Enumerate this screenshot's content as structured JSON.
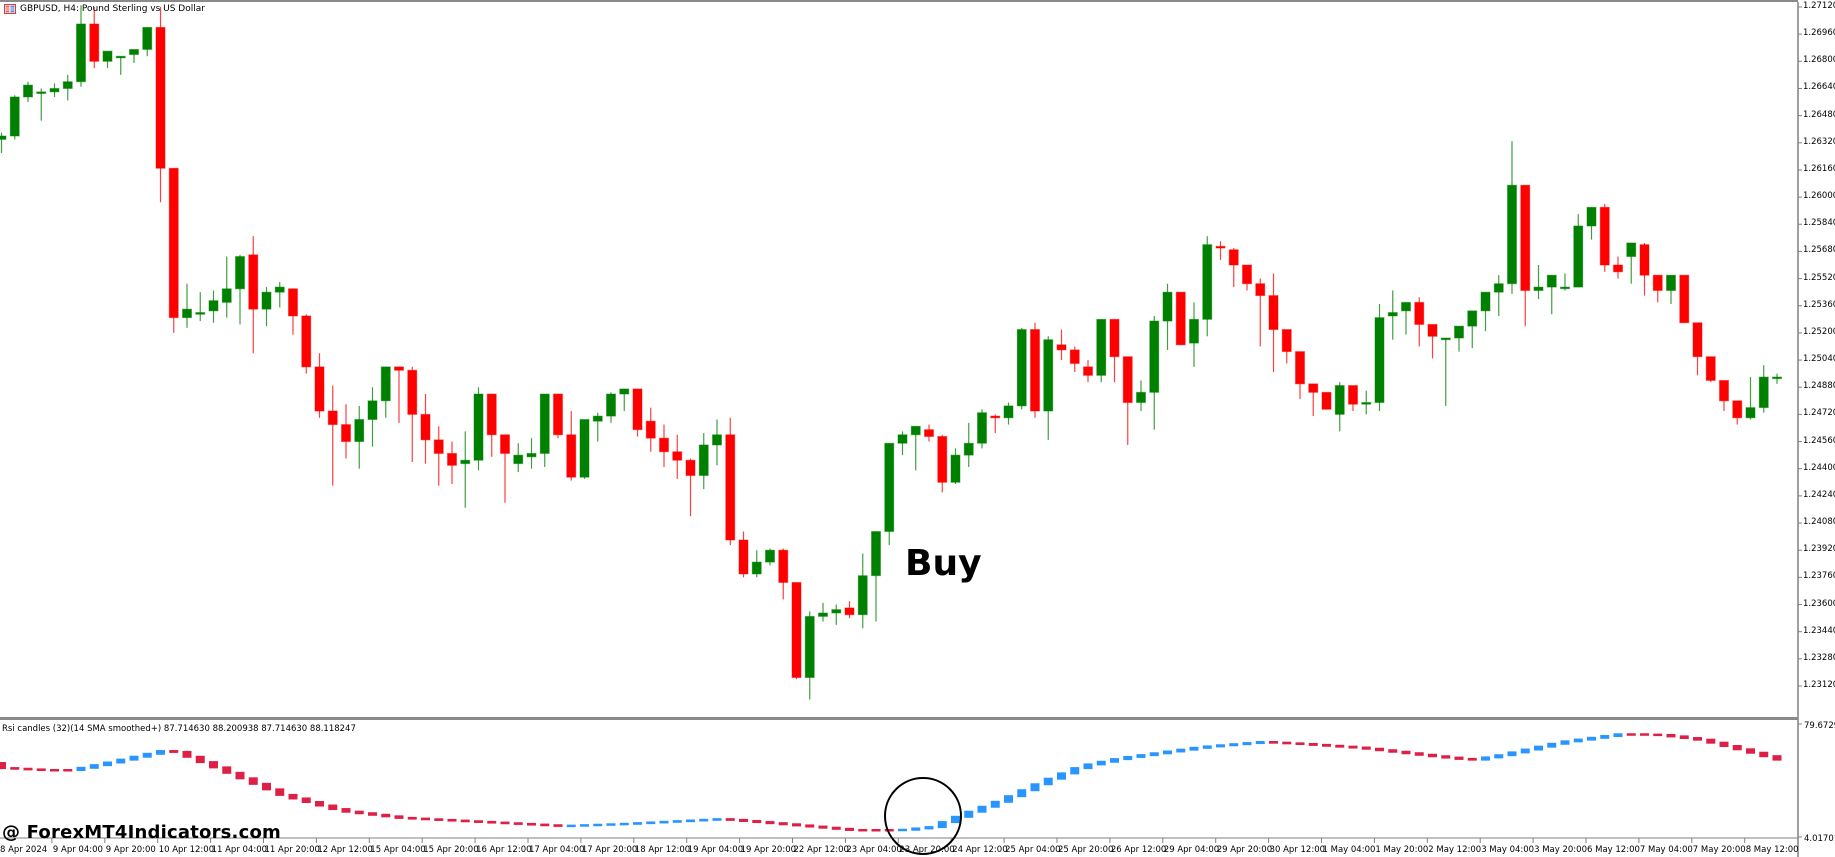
{
  "window": {
    "title": "GBPUSD, H4:  Pound Sterling vs US Dollar",
    "icon": "chart-window-icon"
  },
  "indicator": {
    "label": "Rsi candles (32)(14 SMA smoothed+) 87.714630 88.200938 87.714630 88.118247",
    "scale_max": "79.672909",
    "scale_min": "4.017013",
    "up_color": "#1e90ff",
    "down_color": "#dc143c"
  },
  "annotations": {
    "buy_text": "Buy",
    "watermark": "@ ForexMT4Indicators.com",
    "circle": "circle-marker"
  },
  "colors": {
    "bull": "#008000",
    "bear": "#ff0000",
    "background": "#ffffff",
    "axis": "#808080"
  },
  "chart_data": [
    {
      "type": "candlestick",
      "title": "GBPUSD, H4: Pound Sterling vs US Dollar",
      "xlabel": "",
      "ylabel": "",
      "ylim": [
        1.2304,
        1.2714
      ],
      "price_ticks": [
        "1.27120",
        "1.26960",
        "1.26800",
        "1.26640",
        "1.26480",
        "1.26320",
        "1.26160",
        "1.26000",
        "1.25840",
        "1.25680",
        "1.25520",
        "1.25360",
        "1.25200",
        "1.25040",
        "1.24880",
        "1.24720",
        "1.24560",
        "1.24400",
        "1.24240",
        "1.24080",
        "1.23920",
        "1.23760",
        "1.23600",
        "1.23440",
        "1.23280",
        "1.23120"
      ],
      "time_ticks": [
        "8 Apr 2024",
        "9 Apr 04:00",
        "9 Apr 20:00",
        "10 Apr 12:00",
        "11 Apr 04:00",
        "11 Apr 20:00",
        "12 Apr 12:00",
        "15 Apr 04:00",
        "15 Apr 20:00",
        "16 Apr 12:00",
        "17 Apr 04:00",
        "17 Apr 20:00",
        "18 Apr 12:00",
        "19 Apr 04:00",
        "19 Apr 20:00",
        "22 Apr 12:00",
        "23 Apr 04:00",
        "23 Apr 20:00",
        "24 Apr 12:00",
        "25 Apr 04:00",
        "25 Apr 20:00",
        "26 Apr 12:00",
        "29 Apr 04:00",
        "29 Apr 20:00",
        "30 Apr 12:00",
        "1 May 04:00",
        "1 May 20:00",
        "2 May 12:00",
        "3 May 04:00",
        "3 May 20:00",
        "6 May 12:00",
        "7 May 04:00",
        "7 May 20:00",
        "8 May 12:00"
      ],
      "grid": false,
      "legend": "none",
      "candles_ohlc": [
        [
          1.2634,
          1.2638,
          1.2626,
          1.2636
        ],
        [
          1.2636,
          1.266,
          1.2634,
          1.2659
        ],
        [
          1.2659,
          1.2668,
          1.2656,
          1.2666
        ],
        [
          1.2662,
          1.2664,
          1.2645,
          1.2662
        ],
        [
          1.2662,
          1.2667,
          1.2659,
          1.2664
        ],
        [
          1.2664,
          1.2672,
          1.2657,
          1.2668
        ],
        [
          1.2668,
          1.2713,
          1.2665,
          1.2702
        ],
        [
          1.2702,
          1.2712,
          1.2676,
          1.268
        ],
        [
          1.268,
          1.2686,
          1.2676,
          1.2686
        ],
        [
          1.2683,
          1.2683,
          1.2672,
          1.2683
        ],
        [
          1.2684,
          1.2687,
          1.2679,
          1.2687
        ],
        [
          1.2687,
          1.27,
          1.2683,
          1.27
        ],
        [
          1.27,
          1.2712,
          1.2597,
          1.2617
        ],
        [
          1.2617,
          1.2617,
          1.252,
          1.2529
        ],
        [
          1.2529,
          1.2549,
          1.2523,
          1.2534
        ],
        [
          1.2531,
          1.2544,
          1.2527,
          1.2532
        ],
        [
          1.2533,
          1.2545,
          1.2526,
          1.2539
        ],
        [
          1.2538,
          1.2565,
          1.2529,
          1.2546
        ],
        [
          1.2546,
          1.2566,
          1.2525,
          1.2565
        ],
        [
          1.2566,
          1.2577,
          1.2508,
          1.2534
        ],
        [
          1.2534,
          1.2547,
          1.2524,
          1.2544
        ],
        [
          1.2544,
          1.255,
          1.2535,
          1.2547
        ],
        [
          1.2546,
          1.2546,
          1.2519,
          1.253
        ],
        [
          1.253,
          1.2531,
          1.2496,
          1.25
        ],
        [
          1.25,
          1.2508,
          1.247,
          1.2474
        ],
        [
          1.2474,
          1.2489,
          1.243,
          1.2466
        ],
        [
          1.2466,
          1.2478,
          1.2446,
          1.2456
        ],
        [
          1.2456,
          1.2477,
          1.244,
          1.2469
        ],
        [
          1.2469,
          1.2488,
          1.2453,
          1.248
        ],
        [
          1.248,
          1.2498,
          1.247,
          1.25
        ],
        [
          1.25,
          1.25,
          1.2467,
          1.2498
        ],
        [
          1.2498,
          1.25,
          1.2444,
          1.2472
        ],
        [
          1.2472,
          1.2484,
          1.2443,
          1.2457
        ],
        [
          1.2457,
          1.2465,
          1.243,
          1.2449
        ],
        [
          1.2449,
          1.2456,
          1.2431,
          1.2442
        ],
        [
          1.2443,
          1.2462,
          1.2417,
          1.2445
        ],
        [
          1.2445,
          1.2488,
          1.2439,
          1.2484
        ],
        [
          1.2484,
          1.2476,
          1.2447,
          1.246
        ],
        [
          1.246,
          1.246,
          1.242,
          1.2449
        ],
        [
          1.2443,
          1.2455,
          1.2438,
          1.2448
        ],
        [
          1.2447,
          1.2458,
          1.244,
          1.2449
        ],
        [
          1.2449,
          1.2481,
          1.2441,
          1.2484
        ],
        [
          1.2484,
          1.2479,
          1.2458,
          1.246
        ],
        [
          1.246,
          1.2474,
          1.2433,
          1.2435
        ],
        [
          1.2435,
          1.2469,
          1.2434,
          1.2469
        ],
        [
          1.2468,
          1.2473,
          1.2456,
          1.2471
        ],
        [
          1.2471,
          1.2485,
          1.2467,
          1.2484
        ],
        [
          1.2484,
          1.2484,
          1.2474,
          1.2487
        ],
        [
          1.2487,
          1.2477,
          1.2459,
          1.2463
        ],
        [
          1.2468,
          1.2476,
          1.245,
          1.2458
        ],
        [
          1.2458,
          1.2466,
          1.2441,
          1.245
        ],
        [
          1.245,
          1.246,
          1.2434,
          1.2445
        ],
        [
          1.2445,
          1.2446,
          1.2412,
          1.2436
        ],
        [
          1.2436,
          1.2461,
          1.2428,
          1.2454
        ],
        [
          1.2454,
          1.2469,
          1.2442,
          1.246
        ],
        [
          1.246,
          1.247,
          1.2395,
          1.2398
        ],
        [
          1.2398,
          1.2403,
          1.2376,
          1.2378
        ],
        [
          1.2378,
          1.2392,
          1.2376,
          1.2385
        ],
        [
          1.2385,
          1.2393,
          1.2383,
          1.2392
        ],
        [
          1.2392,
          1.2393,
          1.2363,
          1.2373
        ],
        [
          1.2373,
          1.2363,
          1.2316,
          1.2317
        ],
        [
          1.2317,
          1.2356,
          1.2304,
          1.2353
        ],
        [
          1.2353,
          1.2361,
          1.235,
          1.2355
        ],
        [
          1.2355,
          1.236,
          1.2348,
          1.2357
        ],
        [
          1.2358,
          1.2362,
          1.2352,
          1.2354
        ],
        [
          1.2354,
          1.239,
          1.2346,
          1.2377
        ],
        [
          1.2377,
          1.2403,
          1.235,
          1.2403
        ],
        [
          1.2403,
          1.2455,
          1.2395,
          1.2455
        ],
        [
          1.2455,
          1.2462,
          1.2448,
          1.246
        ],
        [
          1.246,
          1.2461,
          1.2439,
          1.2465
        ],
        [
          1.2463,
          1.2466,
          1.2456,
          1.2459
        ],
        [
          1.2459,
          1.246,
          1.2426,
          1.2432
        ],
        [
          1.2432,
          1.2452,
          1.2431,
          1.2448
        ],
        [
          1.2448,
          1.2467,
          1.2441,
          1.2455
        ],
        [
          1.2455,
          1.2475,
          1.2452,
          1.2473
        ],
        [
          1.2471,
          1.2472,
          1.2461,
          1.247
        ],
        [
          1.247,
          1.2479,
          1.2466,
          1.2477
        ],
        [
          1.2477,
          1.2523,
          1.2475,
          1.2522
        ],
        [
          1.2522,
          1.2526,
          1.247,
          1.2474
        ],
        [
          1.2474,
          1.2518,
          1.2457,
          1.2516
        ],
        [
          1.2513,
          1.2522,
          1.2504,
          1.251
        ],
        [
          1.251,
          1.2512,
          1.2497,
          1.2502
        ],
        [
          1.25,
          1.2504,
          1.2491,
          1.2495
        ],
        [
          1.2495,
          1.2524,
          1.2491,
          1.2528
        ],
        [
          1.2528,
          1.2528,
          1.2491,
          1.2506
        ],
        [
          1.2506,
          1.2505,
          1.2454,
          1.2479
        ],
        [
          1.2479,
          1.2492,
          1.2474,
          1.2485
        ],
        [
          1.2485,
          1.253,
          1.2463,
          1.2527
        ],
        [
          1.2527,
          1.2549,
          1.251,
          1.2544
        ],
        [
          1.2544,
          1.2537,
          1.2513,
          1.2513
        ],
        [
          1.2514,
          1.2538,
          1.25,
          1.2528
        ],
        [
          1.2528,
          1.2577,
          1.2518,
          1.2572
        ],
        [
          1.2571,
          1.2574,
          1.2563,
          1.257
        ],
        [
          1.2569,
          1.257,
          1.2547,
          1.256
        ],
        [
          1.256,
          1.2559,
          1.2545,
          1.2549
        ],
        [
          1.2549,
          1.2552,
          1.2512,
          1.2542
        ],
        [
          1.2542,
          1.2555,
          1.2497,
          1.2522
        ],
        [
          1.2522,
          1.2518,
          1.2502,
          1.2509
        ],
        [
          1.2509,
          1.2502,
          1.2481,
          1.249
        ],
        [
          1.249,
          1.2484,
          1.2471,
          1.2485
        ],
        [
          1.2485,
          1.2479,
          1.2476,
          1.2475
        ],
        [
          1.2472,
          1.2491,
          1.2462,
          1.2489
        ],
        [
          1.2489,
          1.2485,
          1.2474,
          1.2478
        ],
        [
          1.2478,
          1.2486,
          1.2472,
          1.2479
        ],
        [
          1.2479,
          1.2537,
          1.2474,
          1.2529
        ],
        [
          1.253,
          1.2545,
          1.2516,
          1.2532
        ],
        [
          1.2533,
          1.2533,
          1.2519,
          1.2538
        ],
        [
          1.2538,
          1.2541,
          1.2512,
          1.2525
        ],
        [
          1.2525,
          1.2518,
          1.2505,
          1.2518
        ],
        [
          1.2516,
          1.2516,
          1.2477,
          1.2517
        ],
        [
          1.2517,
          1.2523,
          1.2509,
          1.2524
        ],
        [
          1.2524,
          1.2532,
          1.2511,
          1.2533
        ],
        [
          1.2533,
          1.2537,
          1.2521,
          1.2544
        ],
        [
          1.2544,
          1.2554,
          1.253,
          1.2549
        ],
        [
          1.2549,
          1.2633,
          1.2543,
          1.2607
        ],
        [
          1.2607,
          1.2606,
          1.2524,
          1.2545
        ],
        [
          1.2545,
          1.256,
          1.254,
          1.2547
        ],
        [
          1.2547,
          1.2549,
          1.2531,
          1.2554
        ],
        [
          1.2547,
          1.2555,
          1.2545,
          1.2547
        ],
        [
          1.2547,
          1.259,
          1.2547,
          1.2583
        ],
        [
          1.2583,
          1.2593,
          1.2575,
          1.2594
        ],
        [
          1.2594,
          1.2596,
          1.2556,
          1.256
        ],
        [
          1.256,
          1.2565,
          1.2552,
          1.2556
        ],
        [
          1.2565,
          1.257,
          1.2549,
          1.2573
        ],
        [
          1.2572,
          1.2573,
          1.2542,
          1.2554
        ],
        [
          1.2554,
          1.2554,
          1.2538,
          1.2545
        ],
        [
          1.2545,
          1.2548,
          1.2537,
          1.2554
        ],
        [
          1.2554,
          1.2554,
          1.2527,
          1.2526
        ],
        [
          1.2526,
          1.2524,
          1.2495,
          1.2506
        ],
        [
          1.2506,
          1.2506,
          1.2491,
          1.2492
        ],
        [
          1.2492,
          1.2489,
          1.2474,
          1.248
        ],
        [
          1.248,
          1.2477,
          1.2466,
          1.247
        ],
        [
          1.247,
          1.2494,
          1.2469,
          1.2476
        ],
        [
          1.2476,
          1.2501,
          1.2473,
          1.2494
        ],
        [
          1.2494,
          1.2496,
          1.249,
          1.2494
        ]
      ]
    },
    {
      "type": "candlestick",
      "title": "Rsi candles (32)(14 SMA smoothed+)",
      "ylim": [
        4.017013,
        79.672909
      ],
      "values_last": [
        87.71463,
        88.200938,
        87.71463,
        88.118247
      ],
      "series_note": "blue = rising, crimson = falling; trough near 23 Apr (circled) turns blue"
    }
  ]
}
